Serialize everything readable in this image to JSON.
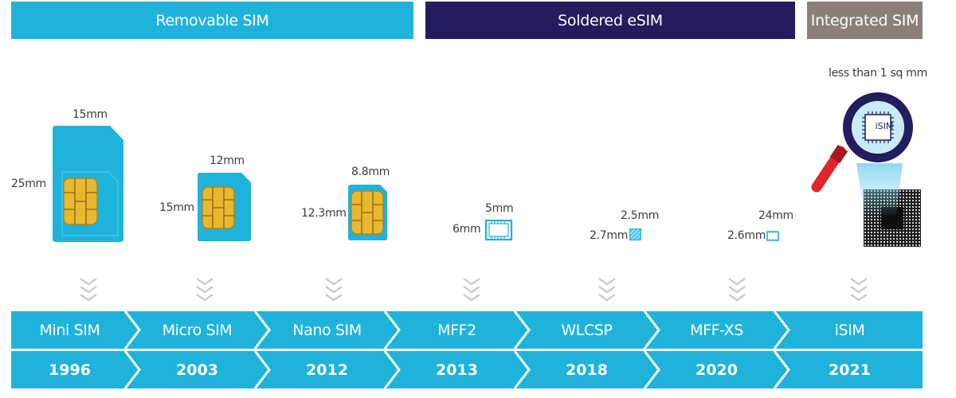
{
  "categories": {
    "removable": "Removable SIM",
    "soldered": "Soldered eSIM",
    "integrated": "Integrated SIM"
  },
  "colors": {
    "cyan": "#1fb3dc",
    "navy": "#221d5c",
    "taupe": "#8c7f78",
    "gold": "#e8b830",
    "red": "#e0252d"
  },
  "dimensions": {
    "mini_width": "15mm",
    "mini_height": "25mm",
    "micro_width": "12mm",
    "micro_height": "15mm",
    "nano_width": "8.8mm",
    "nano_height": "12.3mm",
    "mff2_width": "5mm",
    "mff2_height": "6mm",
    "wlcsp_width": "2.5mm",
    "wlcsp_height": "2.7mm",
    "mffxs_width": "24mm",
    "mffxs_height": "2.6mm",
    "isim_size": "less than 1 sq mm",
    "isim_label": "iSIM"
  },
  "timeline": [
    {
      "name": "Mini SIM",
      "year": "1996"
    },
    {
      "name": "Micro SIM",
      "year": "2003"
    },
    {
      "name": "Nano SIM",
      "year": "2012"
    },
    {
      "name": "MFF2",
      "year": "2013"
    },
    {
      "name": "WLCSP",
      "year": "2018"
    },
    {
      "name": "MFF-XS",
      "year": "2020"
    },
    {
      "name": "iSIM",
      "year": "2021"
    }
  ]
}
